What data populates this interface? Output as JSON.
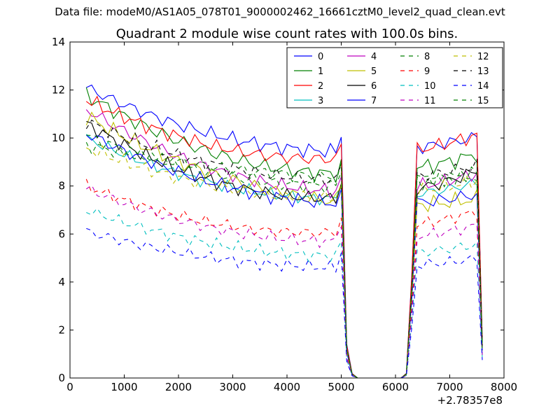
{
  "chart_data": {
    "type": "line",
    "suptitle": "Data file: modeM0/AS1A05_078T01_9000002462_16661cztM0_level2_quad_clean.evt",
    "title": "Quadrant 2 module wise count rates with 100.0s bins.",
    "xlabel": "",
    "ylabel": "",
    "x_offset_label": "+2.78357e8",
    "xlim": [
      0,
      8000
    ],
    "ylim": [
      0,
      14
    ],
    "xticks": [
      0,
      1000,
      2000,
      3000,
      4000,
      5000,
      6000,
      7000,
      8000
    ],
    "yticks": [
      0,
      2,
      4,
      6,
      8,
      10,
      12,
      14
    ],
    "legend_position": "top-right",
    "legend_columns": 4,
    "x": [
      300,
      400,
      500,
      600,
      700,
      800,
      900,
      1000,
      1100,
      1200,
      1300,
      1400,
      1500,
      1600,
      1700,
      1800,
      1900,
      2000,
      2100,
      2200,
      2300,
      2400,
      2500,
      2600,
      2700,
      2800,
      2900,
      3000,
      3100,
      3200,
      3300,
      3400,
      3500,
      3600,
      3700,
      3800,
      3900,
      4000,
      4100,
      4200,
      4300,
      4400,
      4500,
      4600,
      4700,
      4800,
      4900,
      5000,
      5100,
      5200,
      5300,
      5400,
      5500,
      5600,
      5700,
      5800,
      5900,
      6000,
      6100,
      6200,
      6300,
      6400,
      6500,
      6600,
      6700,
      6800,
      6900,
      7000,
      7100,
      7200,
      7300,
      7400,
      7500,
      7600
    ],
    "gap_pattern": [
      1,
      1,
      1,
      1,
      1,
      1,
      1,
      1,
      1,
      1,
      1,
      1,
      1,
      1,
      1,
      1,
      1,
      1,
      1,
      1,
      1,
      1,
      1,
      1,
      1,
      1,
      1,
      1,
      1,
      1,
      1,
      1,
      1,
      1,
      1,
      1,
      1,
      1,
      1,
      1,
      1,
      1,
      1,
      1,
      1,
      1,
      1,
      1,
      0.15,
      0.02,
      0,
      0,
      0,
      0,
      0,
      0,
      0,
      0,
      0,
      0.02,
      0.45,
      1,
      1,
      1,
      1,
      1,
      1,
      1,
      1,
      1,
      1,
      1,
      1,
      0.15
    ],
    "series": [
      {
        "name": "0",
        "color": "#0000ff",
        "dash": "solid",
        "start": 12.1,
        "mid": 9.6,
        "end": 10.1,
        "noise": 0.35
      },
      {
        "name": "1",
        "color": "#008000",
        "dash": "solid",
        "start": 11.8,
        "mid": 8.7,
        "end": 9.4,
        "noise": 0.4
      },
      {
        "name": "2",
        "color": "#ff0000",
        "dash": "solid",
        "start": 11.6,
        "mid": 9.2,
        "end": 10.2,
        "noise": 0.35
      },
      {
        "name": "3",
        "color": "#00bfbf",
        "dash": "solid",
        "start": 10.0,
        "mid": 7.6,
        "end": 8.2,
        "noise": 0.3
      },
      {
        "name": "4",
        "color": "#bf00bf",
        "dash": "solid",
        "start": 11.2,
        "mid": 8.0,
        "end": 8.6,
        "noise": 0.35
      },
      {
        "name": "5",
        "color": "#bfbf00",
        "dash": "solid",
        "start": 10.9,
        "mid": 7.7,
        "end": 7.5,
        "noise": 0.4
      },
      {
        "name": "6",
        "color": "#000000",
        "dash": "solid",
        "start": 10.6,
        "mid": 7.6,
        "end": 8.7,
        "noise": 0.35
      },
      {
        "name": "7",
        "color": "#0000ff",
        "dash": "solid",
        "start": 10.2,
        "mid": 7.5,
        "end": 7.7,
        "noise": 0.35
      },
      {
        "name": "8",
        "color": "#008000",
        "dash": "dashed",
        "start": 10.1,
        "mid": 8.1,
        "end": 8.6,
        "noise": 0.35
      },
      {
        "name": "9",
        "color": "#ff0000",
        "dash": "dashed",
        "start": 8.0,
        "mid": 6.1,
        "end": 7.0,
        "noise": 0.3
      },
      {
        "name": "10",
        "color": "#00bfbf",
        "dash": "dashed",
        "start": 7.0,
        "mid": 5.2,
        "end": 5.6,
        "noise": 0.3
      },
      {
        "name": "11",
        "color": "#bf00bf",
        "dash": "dashed",
        "start": 7.9,
        "mid": 5.8,
        "end": 6.4,
        "noise": 0.3
      },
      {
        "name": "12",
        "color": "#bfbf00",
        "dash": "dashed",
        "start": 9.6,
        "mid": 7.6,
        "end": 8.3,
        "noise": 0.35
      },
      {
        "name": "13",
        "color": "#000000",
        "dash": "dashed",
        "start": 10.7,
        "mid": 8.4,
        "end": 8.9,
        "noise": 0.35
      },
      {
        "name": "14",
        "color": "#0000ff",
        "dash": "dashed",
        "start": 6.1,
        "mid": 4.7,
        "end": 5.0,
        "noise": 0.3
      },
      {
        "name": "15",
        "color": "#008000",
        "dash": "dashed",
        "start": 9.7,
        "mid": 8.5,
        "end": 8.4,
        "noise": 0.35
      }
    ]
  }
}
